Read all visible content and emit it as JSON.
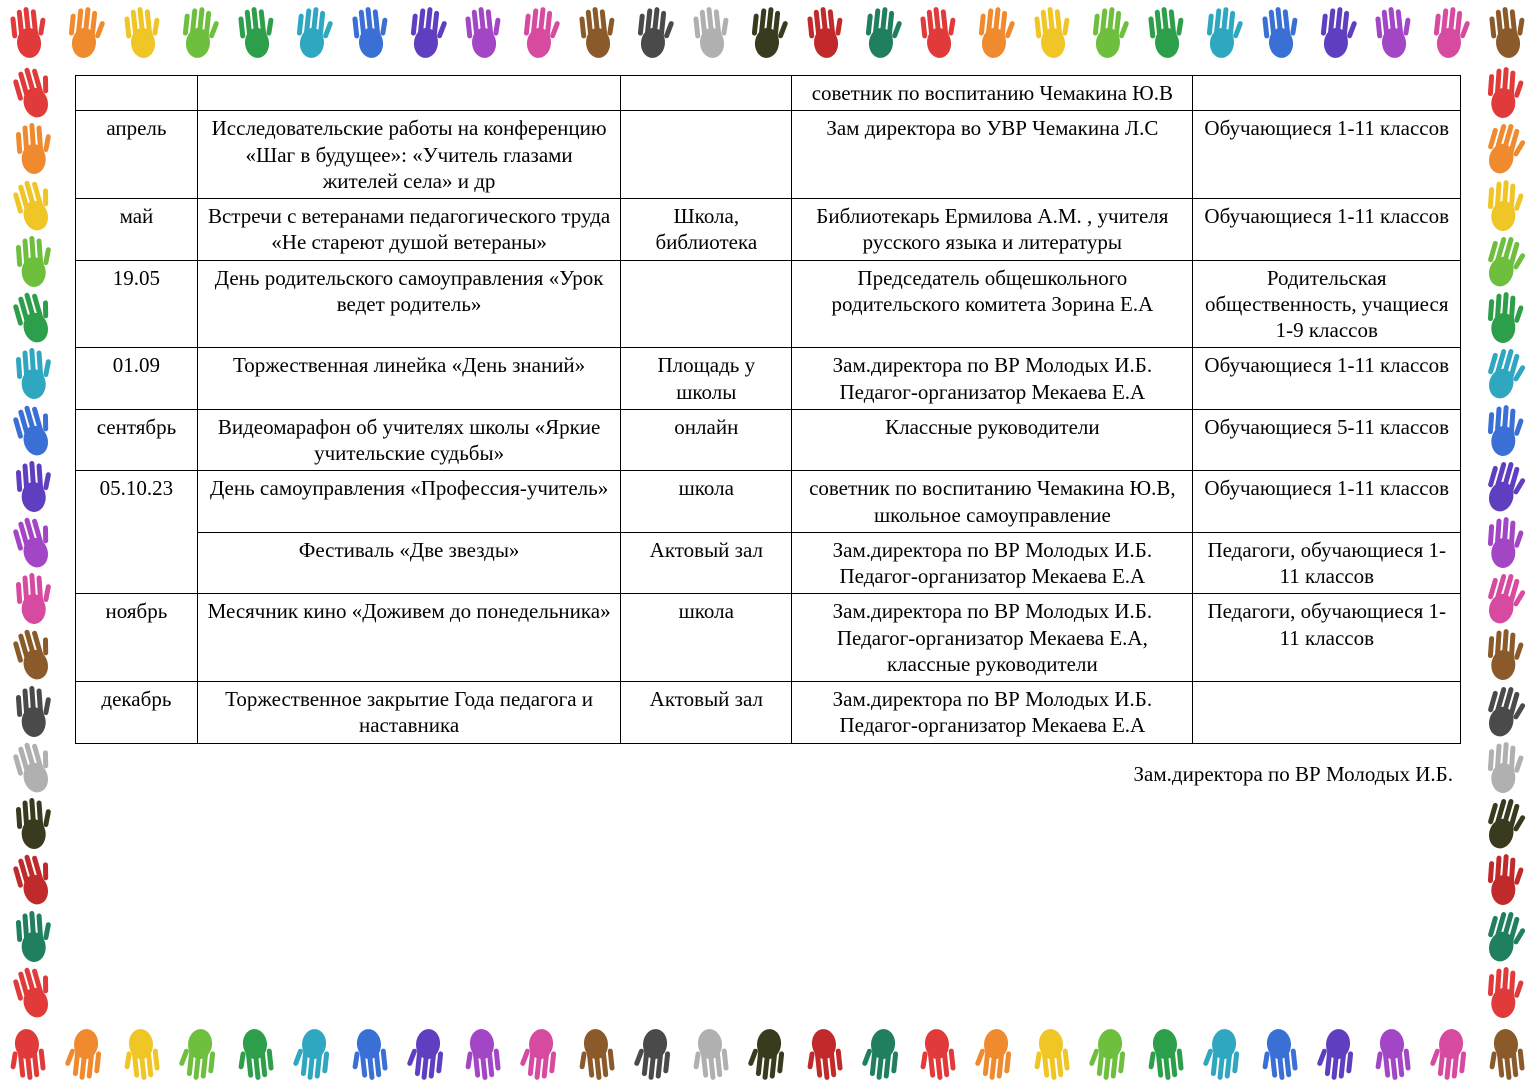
{
  "border": {
    "top_count": 27,
    "bottom_count": 27,
    "side_count": 17,
    "colors": [
      "#e13a3a",
      "#f08a2e",
      "#f0c526",
      "#6fbf3f",
      "#2d9f4a",
      "#2fa7c0",
      "#3a6fd6",
      "#5f3fbf",
      "#a346c6",
      "#d64aa0",
      "#8b5a2b",
      "#4a4a4a",
      "#b0b0b0",
      "#3a3a1f",
      "#c02a2a",
      "#1f7f5f"
    ]
  },
  "columns": {
    "count": 5
  },
  "rows": [
    {
      "c": [
        "",
        "",
        "",
        "советник по воспитанию Чемакина Ю.В",
        ""
      ]
    },
    {
      "c": [
        "апрель",
        "Исследовательские работы на конференцию «Шаг в будущее»: «Учитель глазами жителей села» и др",
        "",
        "Зам директора во УВР Чемакина Л.С",
        "Обучающиеся 1-11 классов"
      ]
    },
    {
      "c": [
        "май",
        "Встречи с ветеранами педагогического труда «Не стареют душой ветераны»",
        "Школа, библиотека",
        "Библиотекарь Ермилова А.М. , учителя русского языка и литературы",
        "Обучающиеся 1-11 классов"
      ]
    },
    {
      "c": [
        "19.05",
        "День родительского самоуправления «Урок ведет родитель»",
        "",
        "Председатель общешкольного родительского комитета Зорина Е.А",
        "Родительская общественность, учащиеся 1-9 классов"
      ]
    },
    {
      "c": [
        "01.09",
        "Торжественная линейка «День знаний»",
        "Площадь у школы",
        "Зам.директора по ВР Молодых И.Б.\nПедагог-организатор Мекаева Е.А",
        "Обучающиеся 1-11 классов"
      ]
    },
    {
      "c": [
        "сентябрь",
        "Видеомарафон  об учителях школы «Яркие учительские судьбы»",
        "онлайн",
        "Классные руководители",
        "Обучающиеся 5-11 классов"
      ]
    },
    {
      "rowspan1": 2,
      "c": [
        "05.10.23",
        "День самоуправления «Профессия-учитель»",
        "школа",
        "советник по воспитанию Чемакина Ю.В, школьное самоуправление",
        "Обучающиеся 1-11 классов"
      ]
    },
    {
      "skip1": true,
      "c": [
        "",
        "Фестиваль «Две звезды»",
        "Актовый зал",
        "Зам.директора по ВР Молодых И.Б.\nПедагог-организатор Мекаева Е.А",
        "Педагоги, обучающиеся 1-11 классов"
      ]
    },
    {
      "c": [
        "ноябрь",
        "Месячник кино «Доживем до понедельника»",
        "школа",
        "Зам.директора по ВР Молодых И.Б.\nПедагог-организатор Мекаева Е.А, классные руководители",
        "Педагоги, обучающиеся 1-11 классов"
      ]
    },
    {
      "c": [
        "декабрь",
        "Торжественное закрытие Года педагога и наставника",
        "Актовый зал",
        "Зам.директора по ВР Молодых И.Б.\nПедагог-организатор Мекаева Е.А",
        ""
      ]
    }
  ],
  "signature": "Зам.директора по ВР Молодых И.Б."
}
